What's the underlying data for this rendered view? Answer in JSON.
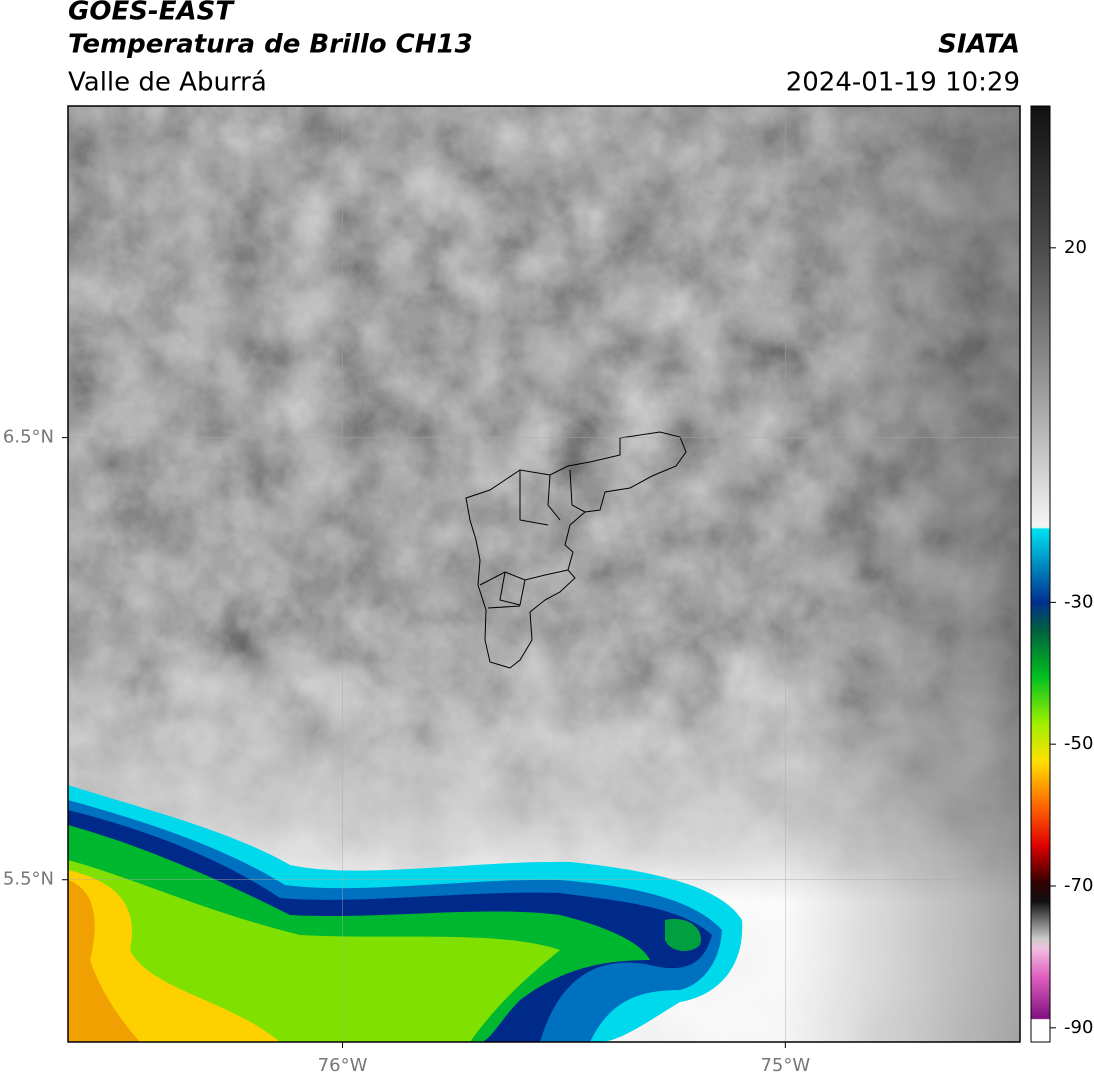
{
  "chart_data": {
    "type": "map",
    "title": "GOES-EAST",
    "subtitle": "Temperatura de Brillo CH13",
    "region": "Valle de Aburrá",
    "source": "SIATA",
    "datetime": "2024-01-19 10:29",
    "xlim": [
      -76.62,
      -74.47
    ],
    "ylim": [
      5.133,
      7.25
    ],
    "xticks": [
      {
        "value": -76,
        "label": "76°W"
      },
      {
        "value": -75,
        "label": "75°W"
      }
    ],
    "yticks": [
      {
        "value": 6.5,
        "label": "6.5°N"
      },
      {
        "value": 5.5,
        "label": "5.5°N"
      }
    ],
    "grid": true,
    "colorbar": {
      "lim": [
        -92,
        40
      ],
      "ticks": [
        20,
        -30,
        -50,
        -70,
        -90
      ]
    }
  }
}
